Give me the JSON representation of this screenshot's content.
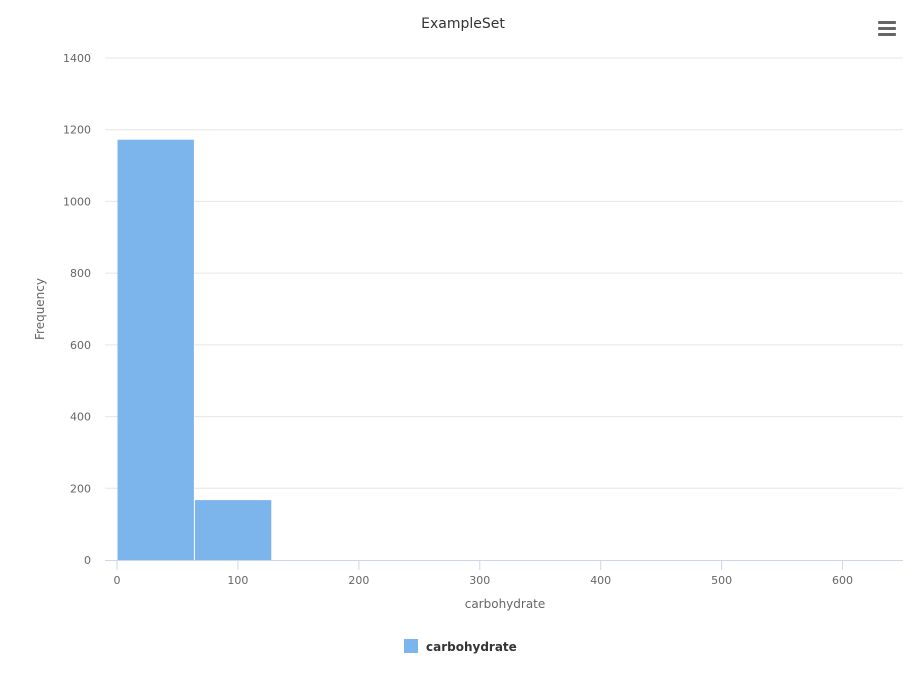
{
  "chart_data": {
    "type": "bar",
    "title": "ExampleSet",
    "xlabel": "carbohydrate",
    "ylabel": "Frequency",
    "xlim": [
      0,
      650
    ],
    "ylim": [
      0,
      1400
    ],
    "x_ticks": [
      0,
      100,
      200,
      300,
      400,
      500,
      600
    ],
    "y_ticks": [
      0,
      200,
      400,
      600,
      800,
      1000,
      1200,
      1400
    ],
    "grid": true,
    "legend_position": "bottom-center",
    "series": [
      {
        "name": "carbohydrate",
        "color": "#7cb5ec",
        "bins": [
          {
            "x0": 0,
            "x1": 64,
            "value": 1172
          },
          {
            "x0": 64,
            "x1": 128,
            "value": 167
          }
        ]
      }
    ]
  },
  "menu": {
    "icon": "hamburger-menu-icon"
  }
}
